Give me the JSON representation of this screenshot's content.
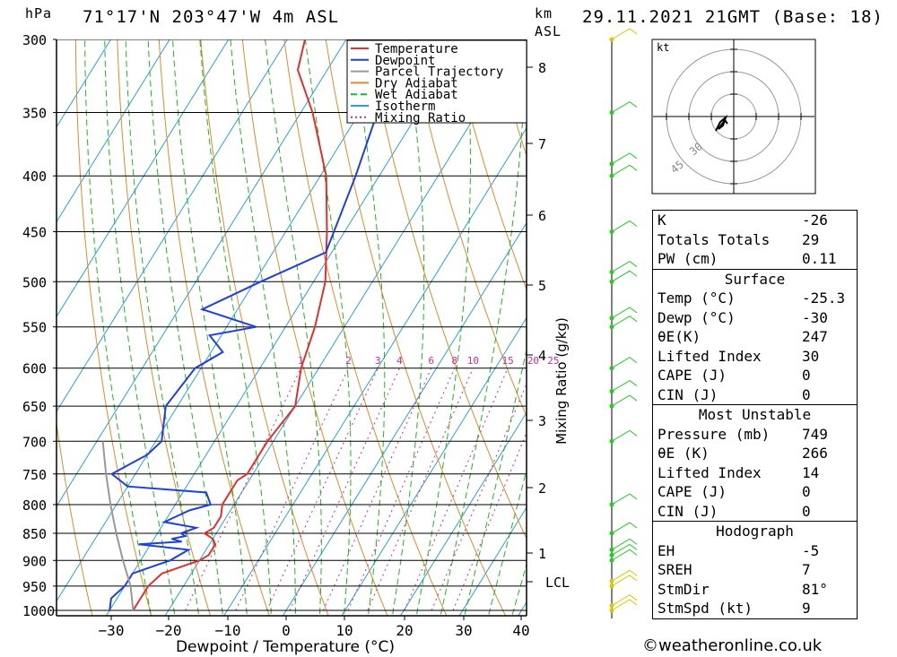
{
  "header": {
    "pressure_unit": "hPa",
    "location": "71°17'N 203°47'W 4m ASL",
    "height_unit_line1": "km",
    "height_unit_line2": "ASL",
    "datetime": "29.11.2021 21GMT (Base: 18)"
  },
  "chart_data": {
    "type": "line",
    "title": "71°17'N 203°47'W 4m ASL",
    "xlabel": "Dewpoint / Temperature (°C)",
    "ylabel": "hPa",
    "right_axis_label": "Mixing Ratio (g/kg)",
    "xlim": [
      -40,
      40
    ],
    "ylim": [
      1000,
      300
    ],
    "x_ticks": [
      "-30",
      "-20",
      "-10",
      "0",
      "10",
      "20",
      "30",
      "40"
    ],
    "pressure_ticks": [
      "300",
      "350",
      "400",
      "450",
      "500",
      "550",
      "600",
      "650",
      "700",
      "750",
      "800",
      "850",
      "900",
      "950",
      "1000"
    ],
    "height_ticks_km": [
      "8",
      "7",
      "6",
      "5",
      "4",
      "3",
      "2",
      "1"
    ],
    "lcl_label": "LCL",
    "mixing_ratio_labels": [
      "1",
      "2",
      "3",
      "4",
      "6",
      "8",
      "10",
      "15",
      "20",
      "25"
    ],
    "legend": [
      "Temperature",
      "Dewpoint",
      "Parcel Trajectory",
      "Dry Adiabat",
      "Wet Adiabat",
      "Isotherm",
      "Mixing Ratio"
    ],
    "colors": {
      "temperature": "#e03030",
      "dewpoint": "#1f3fe0",
      "parcel": "#999999",
      "dry_adiabat": "#e08a2a",
      "wet_adiabat": "#22b422",
      "isotherm": "#2aa0e0",
      "mixing_ratio": "#cc2a9a"
    },
    "series": [
      {
        "name": "Temperature",
        "points": [
          [
            1000,
            -26
          ],
          [
            975,
            -26
          ],
          [
            950,
            -26
          ],
          [
            925,
            -25
          ],
          [
            910,
            -22
          ],
          [
            900,
            -20
          ],
          [
            890,
            -19
          ],
          [
            870,
            -19
          ],
          [
            860,
            -20
          ],
          [
            850,
            -22
          ],
          [
            840,
            -21
          ],
          [
            820,
            -21
          ],
          [
            800,
            -22
          ],
          [
            780,
            -22
          ],
          [
            760,
            -22
          ],
          [
            750,
            -21
          ],
          [
            700,
            -21
          ],
          [
            650,
            -20
          ],
          [
            600,
            -23
          ],
          [
            550,
            -25
          ],
          [
            500,
            -28
          ],
          [
            450,
            -33
          ],
          [
            400,
            -39
          ],
          [
            350,
            -48
          ],
          [
            320,
            -55
          ],
          [
            300,
            -57
          ]
        ]
      },
      {
        "name": "Dewpoint",
        "points": [
          [
            1000,
            -30
          ],
          [
            975,
            -31
          ],
          [
            950,
            -30
          ],
          [
            925,
            -30
          ],
          [
            910,
            -27
          ],
          [
            900,
            -25
          ],
          [
            880,
            -23
          ],
          [
            870,
            -32
          ],
          [
            865,
            -25
          ],
          [
            860,
            -27
          ],
          [
            855,
            -25
          ],
          [
            850,
            -26
          ],
          [
            840,
            -24
          ],
          [
            830,
            -30
          ],
          [
            810,
            -27
          ],
          [
            800,
            -24
          ],
          [
            780,
            -26
          ],
          [
            770,
            -40
          ],
          [
            750,
            -44
          ],
          [
            720,
            -40
          ],
          [
            700,
            -39
          ],
          [
            650,
            -42
          ],
          [
            600,
            -41
          ],
          [
            580,
            -38
          ],
          [
            560,
            -42
          ],
          [
            550,
            -35
          ],
          [
            530,
            -46
          ],
          [
            500,
            -39
          ],
          [
            470,
            -31
          ],
          [
            400,
            -34
          ],
          [
            350,
            -37
          ],
          [
            320,
            -39
          ],
          [
            300,
            -40
          ]
        ]
      },
      {
        "name": "Parcel Trajectory",
        "points": [
          [
            1000,
            -26
          ],
          [
            950,
            -29
          ],
          [
            900,
            -33
          ],
          [
            850,
            -37
          ],
          [
            800,
            -41
          ],
          [
            750,
            -45
          ],
          [
            700,
            -49
          ]
        ]
      }
    ],
    "wind_barbs_pressure": [
      1000,
      990,
      950,
      940,
      900,
      890,
      880,
      850,
      800,
      700,
      650,
      630,
      600,
      550,
      540,
      500,
      490,
      450,
      400,
      390,
      350,
      300
    ]
  },
  "indices": [
    {
      "label": "K",
      "value": "-26"
    },
    {
      "label": "Totals Totals",
      "value": "29"
    },
    {
      "label": "PW (cm)",
      "value": "0.11"
    }
  ],
  "surface": {
    "title": "Surface",
    "rows": [
      {
        "label": "Temp (°C)",
        "value": "-25.3"
      },
      {
        "label": "Dewp (°C)",
        "value": "-30"
      },
      {
        "label": "θE(K)",
        "value": "247"
      },
      {
        "label": "Lifted Index",
        "value": "30"
      },
      {
        "label": "CAPE (J)",
        "value": "0"
      },
      {
        "label": "CIN (J)",
        "value": "0"
      }
    ]
  },
  "most_unstable": {
    "title": "Most Unstable",
    "rows": [
      {
        "label": "Pressure (mb)",
        "value": "749"
      },
      {
        "label": "θE (K)",
        "value": "266"
      },
      {
        "label": "Lifted Index",
        "value": "14"
      },
      {
        "label": "CAPE (J)",
        "value": "0"
      },
      {
        "label": "CIN (J)",
        "value": "0"
      }
    ]
  },
  "hodograph": {
    "unit": "kt",
    "ring_labels": [
      "30",
      "45"
    ],
    "title": "Hodograph",
    "rows": [
      {
        "label": "EH",
        "value": "-5"
      },
      {
        "label": "SREH",
        "value": "7"
      },
      {
        "label": "StmDir",
        "value": "81°"
      },
      {
        "label": "StmSpd (kt)",
        "value": "9"
      }
    ]
  },
  "footer": {
    "copyright": "©weatheronline.co.uk"
  }
}
